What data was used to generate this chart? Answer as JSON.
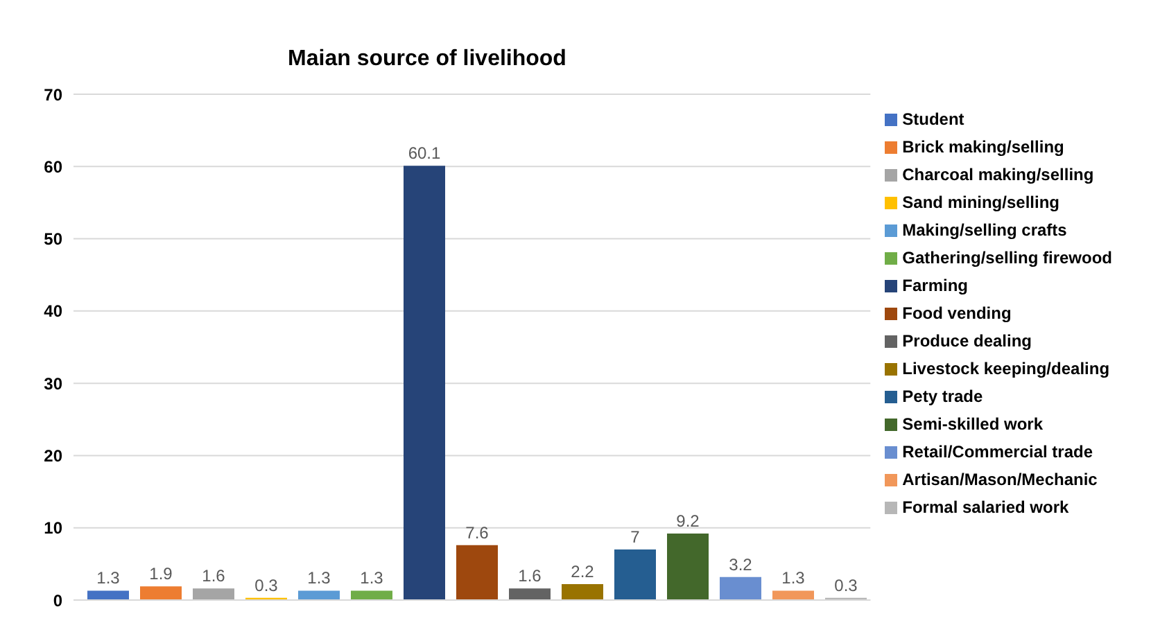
{
  "chart_data": {
    "type": "bar",
    "title": "Maian source of livelihood",
    "categories": [
      null
    ],
    "series": [
      {
        "name": "Student",
        "color": "#4472c4",
        "values": [
          1.3
        ]
      },
      {
        "name": "Brick making/selling",
        "color": "#ed7d31",
        "values": [
          1.9
        ]
      },
      {
        "name": "Charcoal making/selling",
        "color": "#a5a5a5",
        "values": [
          1.6
        ]
      },
      {
        "name": "Sand mining/selling",
        "color": "#ffc000",
        "values": [
          0.3
        ]
      },
      {
        "name": "Making/selling crafts",
        "color": "#5b9bd5",
        "values": [
          1.3
        ]
      },
      {
        "name": "Gathering/selling firewood",
        "color": "#70ad47",
        "values": [
          1.3
        ]
      },
      {
        "name": "Farming",
        "color": "#264478",
        "values": [
          60.1
        ]
      },
      {
        "name": "Food vending",
        "color": "#9e480e",
        "values": [
          7.6
        ]
      },
      {
        "name": "Produce dealing",
        "color": "#636363",
        "values": [
          1.6
        ]
      },
      {
        "name": "Livestock keeping/dealing",
        "color": "#997300",
        "values": [
          2.2
        ]
      },
      {
        "name": "Pety trade",
        "color": "#255e91",
        "values": [
          7
        ]
      },
      {
        "name": "Semi-skilled work",
        "color": "#43682b",
        "values": [
          9.2
        ]
      },
      {
        "name": "Retail/Commercial trade",
        "color": "#698ed0",
        "values": [
          3.2
        ]
      },
      {
        "name": "Artisan/Mason/Mechanic",
        "color": "#f1975a",
        "values": [
          1.3
        ]
      },
      {
        "name": "Formal salaried work",
        "color": "#b7b7b7",
        "values": [
          0.3
        ]
      }
    ],
    "ylim": [
      0,
      70
    ],
    "yticks": [
      0,
      10,
      20,
      30,
      40,
      50,
      60,
      70
    ],
    "grid": "y",
    "legend": "right",
    "data_labels": true
  }
}
